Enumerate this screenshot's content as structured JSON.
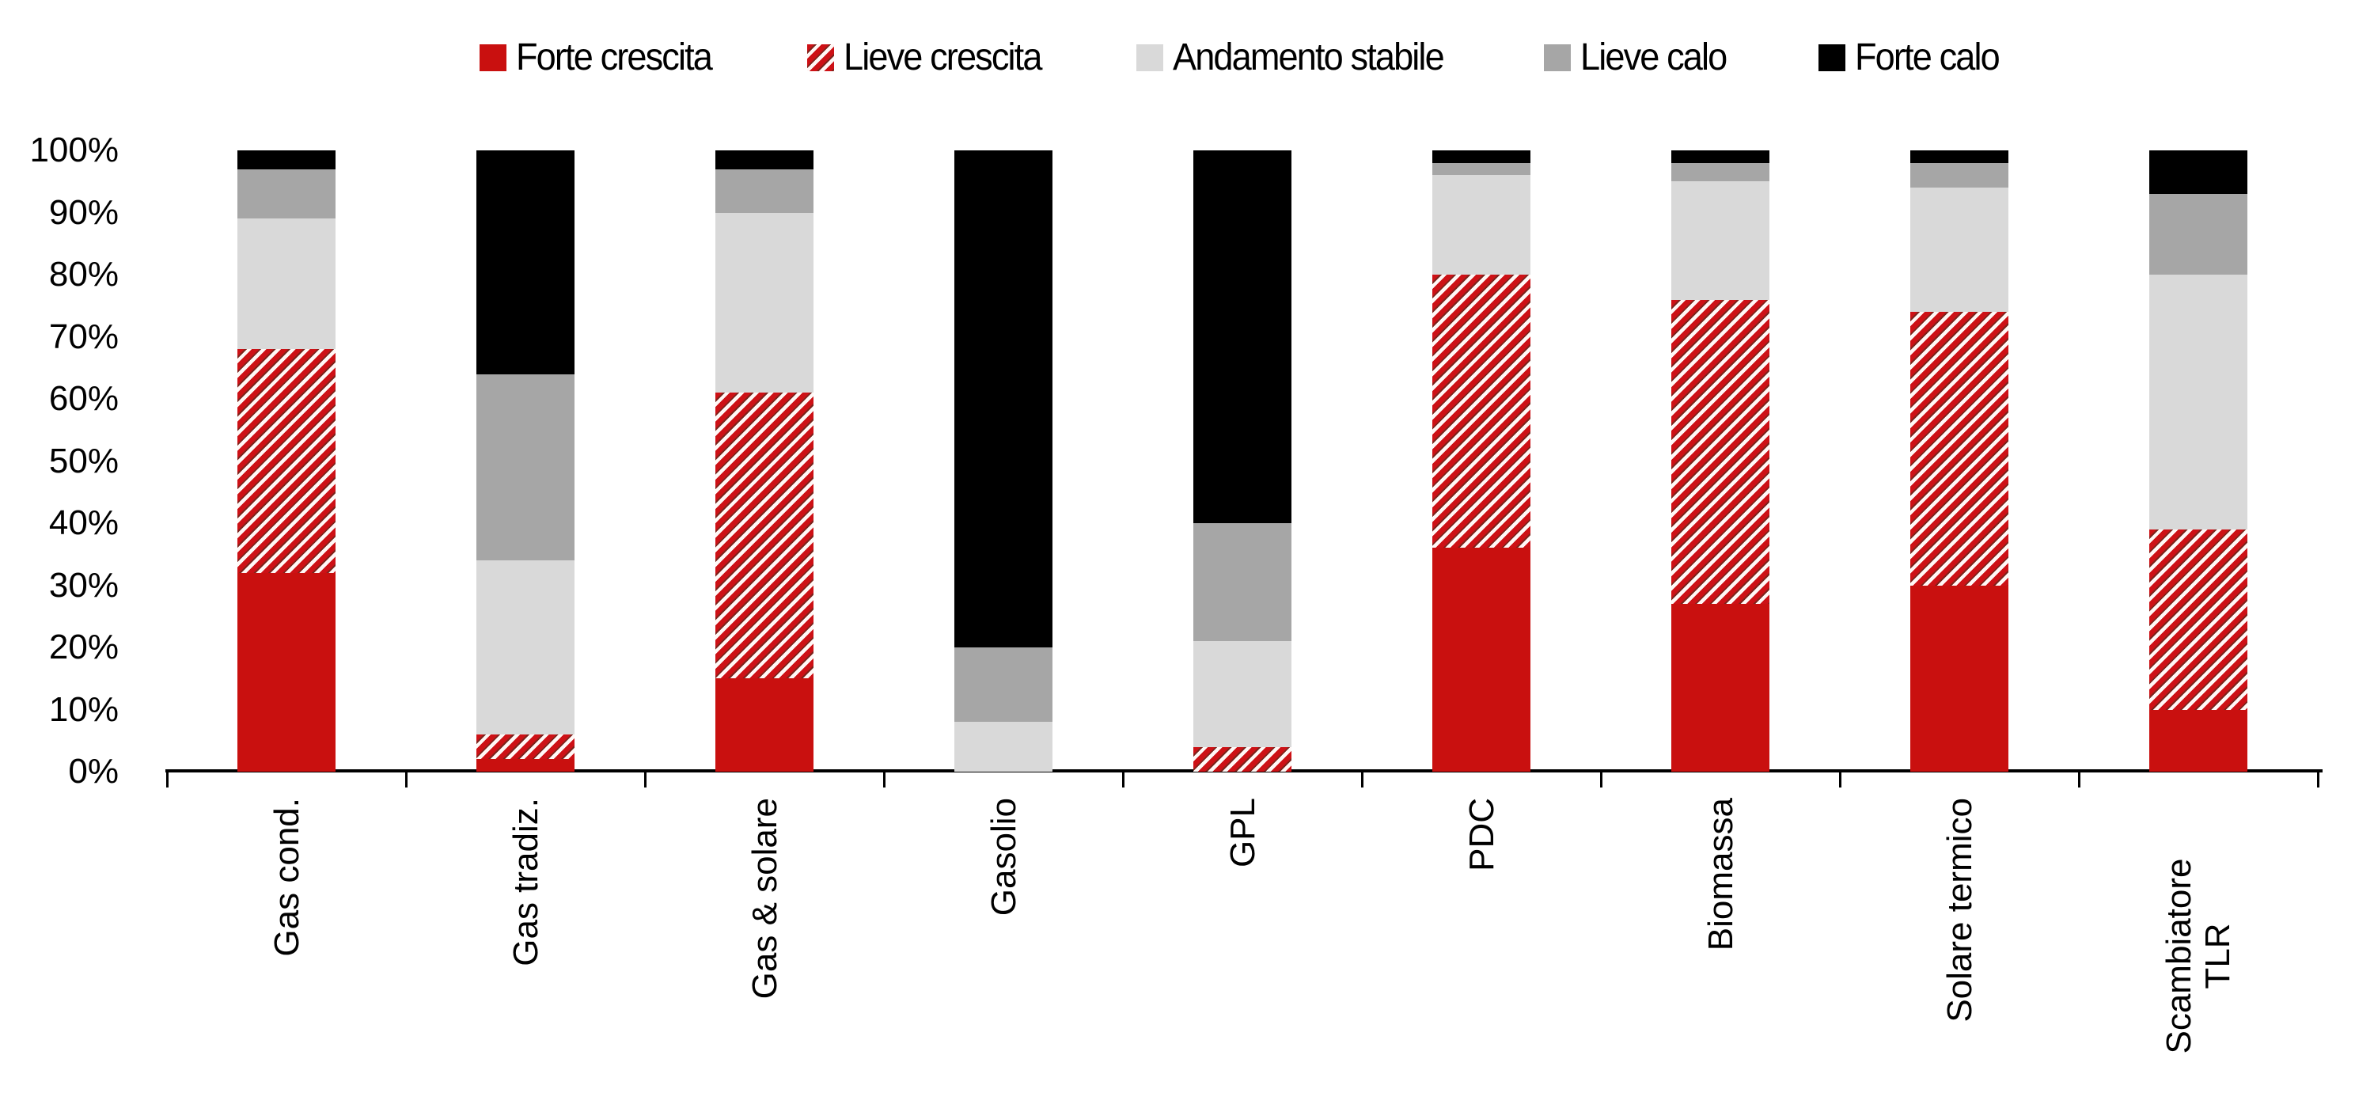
{
  "chart_data": {
    "type": "bar",
    "subtype": "stacked-100-percent-column",
    "title": "",
    "xlabel": "",
    "ylabel": "",
    "ylim": [
      0,
      100
    ],
    "grid": false,
    "legend_position": "top",
    "y_ticks": [
      "0%",
      "10%",
      "20%",
      "30%",
      "40%",
      "50%",
      "60%",
      "70%",
      "80%",
      "90%",
      "100%"
    ],
    "categories": [
      "Gas cond.",
      "Gas tradiz.",
      "Gas & solare",
      "Gasolio",
      "GPL",
      "PDC",
      "Biomassa",
      "Solare termico",
      "Scambiatore TLR"
    ],
    "category_label_lines": [
      [
        "Gas cond."
      ],
      [
        "Gas tradiz."
      ],
      [
        "Gas & solare"
      ],
      [
        "Gasolio"
      ],
      [
        "GPL"
      ],
      [
        "PDC"
      ],
      [
        "Biomassa"
      ],
      [
        "Solare termico"
      ],
      [
        "Scambiatore",
        "TLR"
      ]
    ],
    "series": [
      {
        "name": "Forte crescita",
        "pattern": "solid",
        "color": "#C9100F",
        "values": [
          32,
          2,
          15,
          0,
          0,
          36,
          27,
          30,
          10
        ]
      },
      {
        "name": "Lieve crescita",
        "pattern": "diagonal-hatch",
        "color": "#CD1116",
        "values": [
          36,
          4,
          46,
          0,
          4,
          44,
          49,
          44,
          29
        ]
      },
      {
        "name": "Andamento stabile",
        "pattern": "solid",
        "color": "#D9D9D9",
        "values": [
          21,
          28,
          29,
          8,
          17,
          16,
          19,
          20,
          41
        ]
      },
      {
        "name": "Lieve calo",
        "pattern": "solid",
        "color": "#A6A6A6",
        "values": [
          8,
          30,
          7,
          12,
          19,
          2,
          3,
          4,
          13
        ]
      },
      {
        "name": "Forte calo",
        "pattern": "solid",
        "color": "#000000",
        "values": [
          3,
          36,
          3,
          80,
          60,
          2,
          2,
          2,
          7
        ]
      }
    ]
  },
  "colors": {
    "background": "#FFFFFF",
    "axis": "#000000",
    "text": "#000000",
    "hatch_stripe": "#CD1116",
    "hatch_edge": "#7D231C",
    "hatch_background": "#FFF8F6"
  }
}
